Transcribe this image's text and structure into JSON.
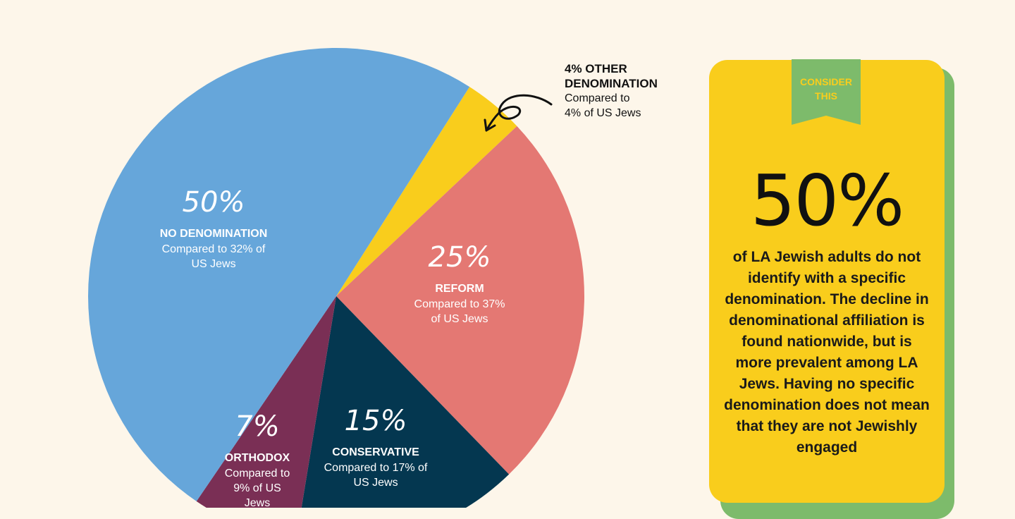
{
  "chart_data": {
    "type": "pie",
    "slices": [
      {
        "key": "other",
        "pct": 4,
        "value_label": "4%",
        "name": "OTHER DENOMINATION",
        "compare_lines": [
          "Compared to",
          "4% of US Jews"
        ],
        "color": "#f9cd1c"
      },
      {
        "key": "reform",
        "pct": 25,
        "value_label": "25%",
        "name": "REFORM",
        "compare_lines": [
          "Compared to 37%",
          "of US Jews"
        ],
        "color": "#e47873"
      },
      {
        "key": "conservative",
        "pct": 15,
        "value_label": "15%",
        "name": "CONSERVATIVE",
        "compare_lines": [
          "Compared to 17% of",
          "US Jews"
        ],
        "color": "#043750"
      },
      {
        "key": "orthodox",
        "pct": 7,
        "value_label": "7%",
        "name": "ORTHODOX",
        "compare_lines": [
          "Compared to",
          "9% of US",
          "Jews"
        ],
        "color": "#7a2f55"
      },
      {
        "key": "none",
        "pct": 50,
        "value_label": "50%",
        "name": "NO DENOMINATION",
        "compare_lines": [
          "Compared to 32% of",
          "US Jews"
        ],
        "color": "#66a6da"
      }
    ]
  },
  "callout": {
    "title_lines": [
      "4% OTHER",
      "DENOMINATION"
    ],
    "sub_lines": [
      "Compared to",
      "4% of US Jews"
    ]
  },
  "card": {
    "ribbon": "CONSIDER\nTHIS",
    "stat": "50%",
    "body": "of LA Jewish adults do not identify with a specific denomination. The decline in denominational affiliation is found nationwide, but is more prevalent among LA Jews. Having no specific denomination does not mean that they are not Jewishly engaged"
  },
  "colors": {
    "background": "#fdf6ea",
    "card": "#f9cd1c",
    "card_shadow": "#7dbb6b"
  }
}
